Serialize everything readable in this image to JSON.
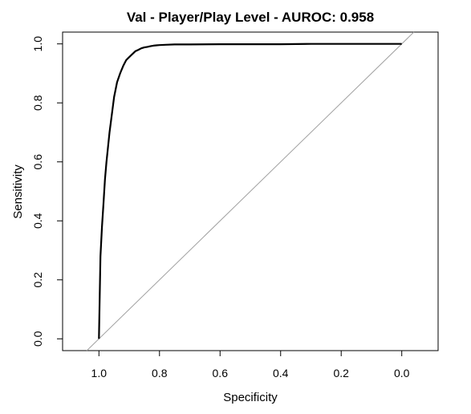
{
  "chart_data": {
    "type": "line",
    "title": "Val - Player/Play Level - AUROC: 0.958",
    "xlabel": "Specificity",
    "ylabel": "Sensitivity",
    "xlim": [
      1.12,
      -0.12
    ],
    "ylim": [
      -0.04,
      1.04
    ],
    "x_reversed": true,
    "grid": false,
    "x_ticks": [
      1.0,
      0.8,
      0.6,
      0.4,
      0.2,
      0.0
    ],
    "x_tick_labels": [
      "1.0",
      "0.8",
      "0.6",
      "0.4",
      "0.2",
      "0.0"
    ],
    "y_ticks": [
      0.0,
      0.2,
      0.4,
      0.6,
      0.8,
      1.0
    ],
    "y_tick_labels": [
      "0.0",
      "0.2",
      "0.4",
      "0.6",
      "0.8",
      "1.0"
    ],
    "reference_line": {
      "name": "chance diagonal",
      "color": "#a0a0a0",
      "points": [
        [
          1.0,
          0.0
        ],
        [
          0.0,
          1.0
        ]
      ]
    },
    "series": [
      {
        "name": "ROC curve",
        "color": "#000000",
        "x": [
          1.0,
          0.995,
          0.99,
          0.985,
          0.98,
          0.975,
          0.97,
          0.965,
          0.96,
          0.955,
          0.95,
          0.94,
          0.93,
          0.92,
          0.91,
          0.9,
          0.89,
          0.88,
          0.87,
          0.86,
          0.85,
          0.84,
          0.83,
          0.82,
          0.81,
          0.8,
          0.78,
          0.75,
          0.7,
          0.6,
          0.5,
          0.4,
          0.3,
          0.2,
          0.1,
          0.05,
          0.0
        ],
        "y": [
          0.0,
          0.28,
          0.38,
          0.46,
          0.54,
          0.6,
          0.65,
          0.7,
          0.74,
          0.78,
          0.82,
          0.87,
          0.9,
          0.925,
          0.945,
          0.955,
          0.965,
          0.975,
          0.98,
          0.985,
          0.988,
          0.99,
          0.992,
          0.994,
          0.995,
          0.996,
          0.997,
          0.998,
          0.998,
          0.999,
          0.999,
          0.999,
          1.0,
          1.0,
          1.0,
          1.0,
          1.0
        ]
      }
    ]
  }
}
